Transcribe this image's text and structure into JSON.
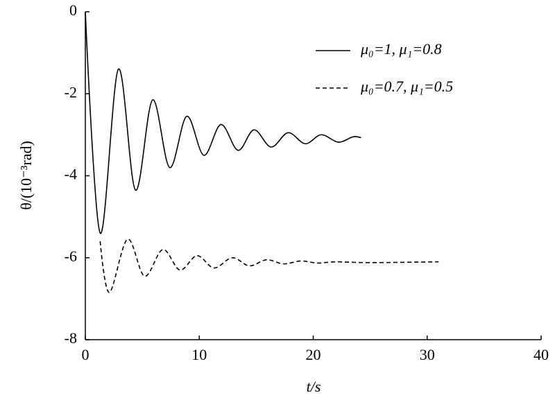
{
  "chart_data": {
    "type": "line",
    "xlabel": "t/s",
    "ylabel": "θ/(10⁻³rad)",
    "xlim": [
      0,
      40
    ],
    "xticks": [
      0,
      10,
      20,
      30,
      40
    ],
    "ylim": [
      -8,
      0
    ],
    "yticks": [
      -8,
      -6,
      -4,
      -2,
      0
    ],
    "legend": "upper right",
    "series": [
      {
        "name": "μ₀=1, μ₁=0.8",
        "color": "#000000",
        "dash": "solid",
        "x": [
          0,
          1.3,
          2.9,
          4.4,
          5.9,
          7.4,
          8.9,
          10.4,
          11.9,
          13.4,
          14.8,
          16.3,
          17.8,
          19.3,
          20.7,
          22.2,
          23.5,
          24.2
        ],
        "values": [
          0,
          -5.4,
          -1.4,
          -4.35,
          -2.15,
          -3.8,
          -2.55,
          -3.5,
          -2.75,
          -3.38,
          -2.88,
          -3.3,
          -2.95,
          -3.22,
          -3.0,
          -3.18,
          -3.05,
          -3.07
        ]
      },
      {
        "name": "μ₀=0.7, μ₁=0.5",
        "color": "#000000",
        "dash": "dashed",
        "x": [
          1.3,
          2.1,
          3.7,
          5.2,
          6.8,
          8.3,
          9.8,
          11.3,
          12.9,
          14.4,
          15.9,
          17.4,
          18.9,
          20.4,
          22,
          25,
          31
        ],
        "values": [
          -5.6,
          -6.85,
          -5.55,
          -6.45,
          -5.8,
          -6.3,
          -5.95,
          -6.25,
          -6.0,
          -6.2,
          -6.05,
          -6.15,
          -6.08,
          -6.13,
          -6.1,
          -6.12,
          -6.1
        ]
      }
    ]
  }
}
